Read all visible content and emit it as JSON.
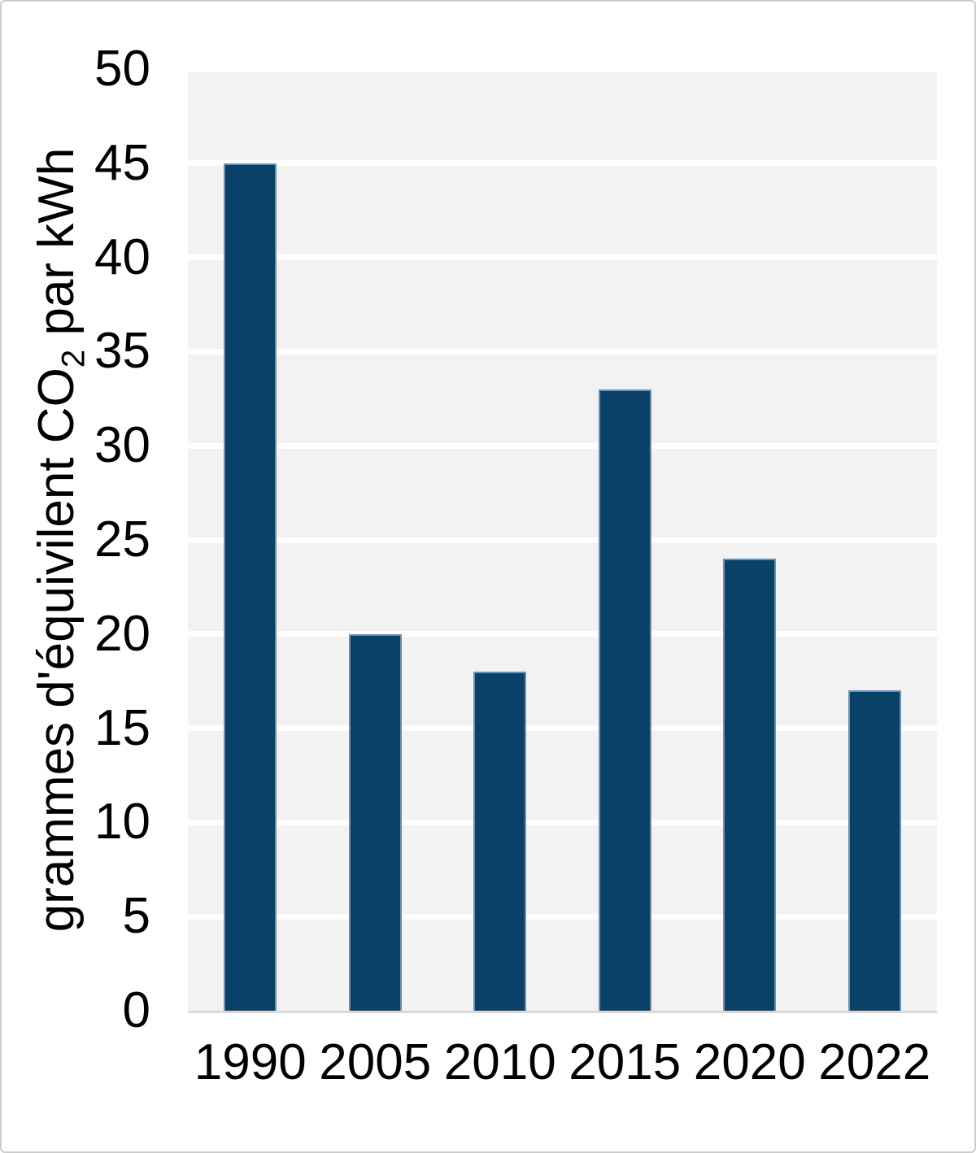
{
  "figure": {
    "background": "#ffffff",
    "border_color": "#cccccc"
  },
  "chart_data": {
    "type": "bar",
    "categories": [
      "1990",
      "2005",
      "2010",
      "2015",
      "2020",
      "2022"
    ],
    "values": [
      45,
      20,
      18,
      33,
      24,
      17
    ],
    "title": "",
    "xlabel": "",
    "ylabel": "grammes d'équivilent CO2 par kWh",
    "ylabel_rich": {
      "pre": "grammes d'équivilent CO",
      "sub": "2",
      "post": " par kWh"
    },
    "ylim": [
      0,
      50
    ],
    "ytick_step": 5,
    "yticks": [
      0,
      5,
      10,
      15,
      20,
      25,
      30,
      35,
      40,
      45,
      50
    ],
    "grid": "horizontal",
    "legend": "none",
    "colors": {
      "bar_fill": "#0a4168",
      "bar_border": "#6d91ac",
      "plot_background": "#f2f2f2",
      "gridline": "#ffffff",
      "axis_line": "#d9d9d9",
      "text": "#000000"
    }
  }
}
